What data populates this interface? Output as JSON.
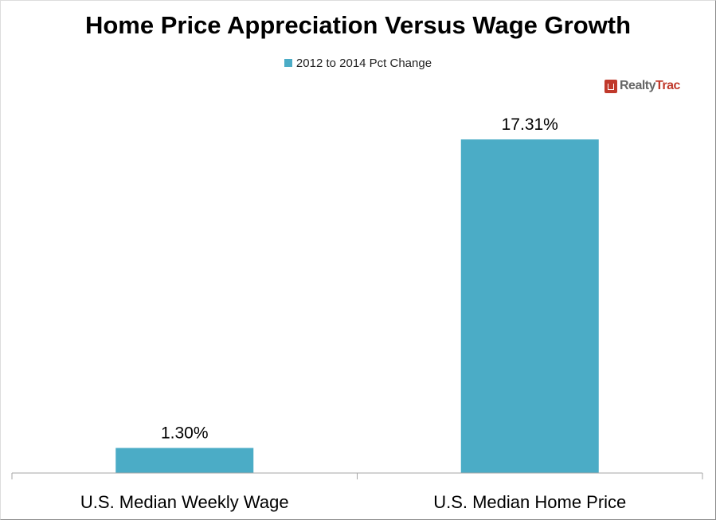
{
  "chart_data": {
    "type": "bar",
    "title": "Home Price Appreciation Versus Wage Growth",
    "categories": [
      "U.S. Median Weekly Wage",
      "U.S. Median Home Price"
    ],
    "series": [
      {
        "name": "2012 to 2014 Pct Change",
        "values": [
          1.3,
          17.31
        ],
        "color": "#4bacc6"
      }
    ],
    "data_labels": [
      "1.30%",
      "17.31%"
    ],
    "xlabel": "",
    "ylabel": "",
    "ylim": [
      0,
      20
    ],
    "grid": false,
    "legend_position": "top"
  },
  "logo": {
    "part1": "Realty",
    "part2": "Trac"
  }
}
